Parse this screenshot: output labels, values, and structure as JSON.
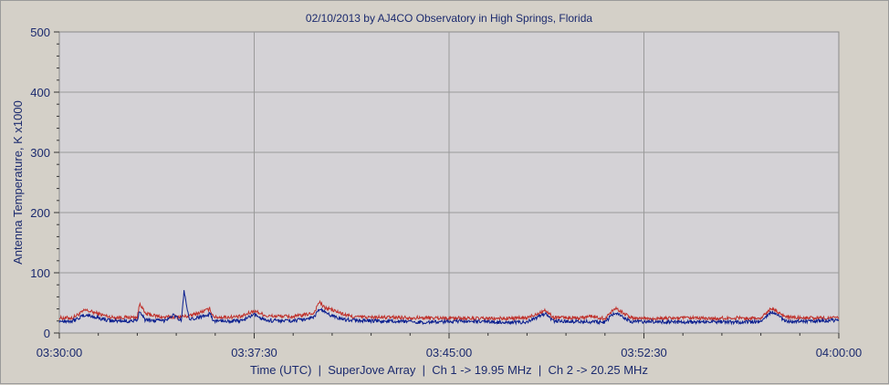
{
  "chart_data": {
    "type": "line",
    "title": "02/10/2013  by  AJ4CO Observatory  in  High Springs, Florida",
    "ylabel": "Antenna Temperature, K x1000",
    "xlabel": "Time (UTC)  |  SuperJove Array  |  Ch 1 -> 19.95 MHz  |  Ch 2 -> 20.25 MHz",
    "ylim": [
      0,
      500
    ],
    "y_ticks": [
      0,
      100,
      200,
      300,
      400,
      500
    ],
    "y_tick_labels": [
      "0",
      "100",
      "200",
      "300",
      "400",
      "500"
    ],
    "x_ticks": [
      "03:30:00",
      "03:37:30",
      "03:45:00",
      "03:52:30",
      "04:00:00"
    ],
    "x_range_minutes": [
      0,
      30
    ],
    "grid": true,
    "colors": {
      "ch1": "#c0302a",
      "ch2": "#0b1f8f",
      "plot_bg": "#d4d2d6",
      "grid": "#9a9a9a",
      "text": "#1b2a6e"
    },
    "series": [
      {
        "color": "#c0302a",
        "x_min": [
          0,
          0.5,
          1,
          2,
          3,
          3.1,
          3.3,
          4,
          5,
          5.8,
          5.9,
          6,
          7,
          7.5,
          8,
          8.5,
          9,
          9.8,
          10,
          10.2,
          10.4,
          11,
          11.3,
          12,
          13,
          14,
          15,
          16,
          17,
          18,
          18.7,
          19,
          20,
          20.4,
          21,
          21.4,
          22,
          23,
          24,
          25,
          26,
          27,
          27.4,
          28,
          28.5,
          29,
          30
        ],
        "values": [
          25,
          25,
          38,
          26,
          26,
          50,
          32,
          26,
          28,
          40,
          30,
          26,
          27,
          37,
          28,
          28,
          27,
          33,
          52,
          42,
          40,
          30,
          27,
          26,
          26,
          25,
          25,
          24,
          24,
          25,
          38,
          26,
          25,
          28,
          24,
          42,
          25,
          24,
          25,
          24,
          25,
          24,
          42,
          26,
          25,
          25,
          25
        ]
      },
      {
        "color": "#0b1f8f",
        "x_min": [
          0,
          0.5,
          1,
          2,
          3,
          3.1,
          3.3,
          4,
          4.4,
          4.7,
          4.8,
          5,
          5.8,
          5.9,
          6,
          7,
          7.5,
          8,
          9,
          9.8,
          10,
          10.2,
          10.4,
          11,
          12,
          13,
          14,
          15,
          16,
          17,
          18,
          18.7,
          19,
          20,
          21,
          21.4,
          22,
          23,
          24,
          25,
          26,
          27,
          27.4,
          28,
          29,
          30
        ],
        "values": [
          20,
          20,
          30,
          20,
          20,
          38,
          22,
          20,
          30,
          20,
          70,
          21,
          32,
          22,
          20,
          20,
          30,
          21,
          20,
          26,
          40,
          35,
          30,
          22,
          20,
          19,
          18,
          19,
          19,
          18,
          18,
          32,
          20,
          19,
          18,
          35,
          19,
          19,
          18,
          19,
          18,
          19,
          36,
          19,
          20,
          21
        ]
      }
    ]
  }
}
